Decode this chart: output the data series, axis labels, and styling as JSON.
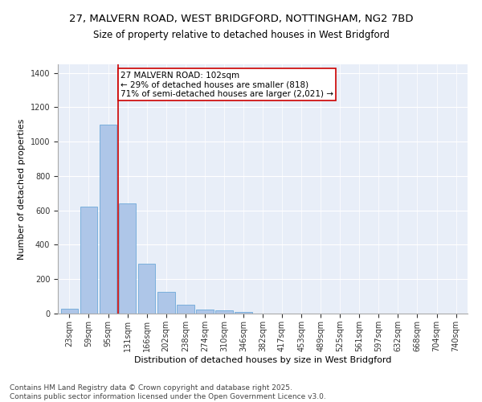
{
  "title_line1": "27, MALVERN ROAD, WEST BRIDGFORD, NOTTINGHAM, NG2 7BD",
  "title_line2": "Size of property relative to detached houses in West Bridgford",
  "xlabel": "Distribution of detached houses by size in West Bridgford",
  "ylabel": "Number of detached properties",
  "categories": [
    "23sqm",
    "59sqm",
    "95sqm",
    "131sqm",
    "166sqm",
    "202sqm",
    "238sqm",
    "274sqm",
    "310sqm",
    "346sqm",
    "382sqm",
    "417sqm",
    "453sqm",
    "489sqm",
    "525sqm",
    "561sqm",
    "597sqm",
    "632sqm",
    "668sqm",
    "704sqm",
    "740sqm"
  ],
  "values": [
    30,
    620,
    1100,
    640,
    290,
    125,
    50,
    25,
    20,
    10,
    0,
    0,
    0,
    0,
    0,
    0,
    0,
    0,
    0,
    0,
    0
  ],
  "bar_color": "#aec6e8",
  "bar_edge_color": "#5a9fd4",
  "vline_x": 2.5,
  "vline_color": "#cc0000",
  "annotation_text": "27 MALVERN ROAD: 102sqm\n← 29% of detached houses are smaller (818)\n71% of semi-detached houses are larger (2,021) →",
  "annotation_box_color": "#ffffff",
  "annotation_box_edge": "#cc0000",
  "ylim": [
    0,
    1450
  ],
  "yticks": [
    0,
    200,
    400,
    600,
    800,
    1000,
    1200,
    1400
  ],
  "background_color": "#e8eef8",
  "grid_color": "#ffffff",
  "footer_line1": "Contains HM Land Registry data © Crown copyright and database right 2025.",
  "footer_line2": "Contains public sector information licensed under the Open Government Licence v3.0.",
  "title_fontsize": 9.5,
  "subtitle_fontsize": 8.5,
  "tick_fontsize": 7,
  "label_fontsize": 8,
  "annotation_fontsize": 7.5,
  "footer_fontsize": 6.5
}
